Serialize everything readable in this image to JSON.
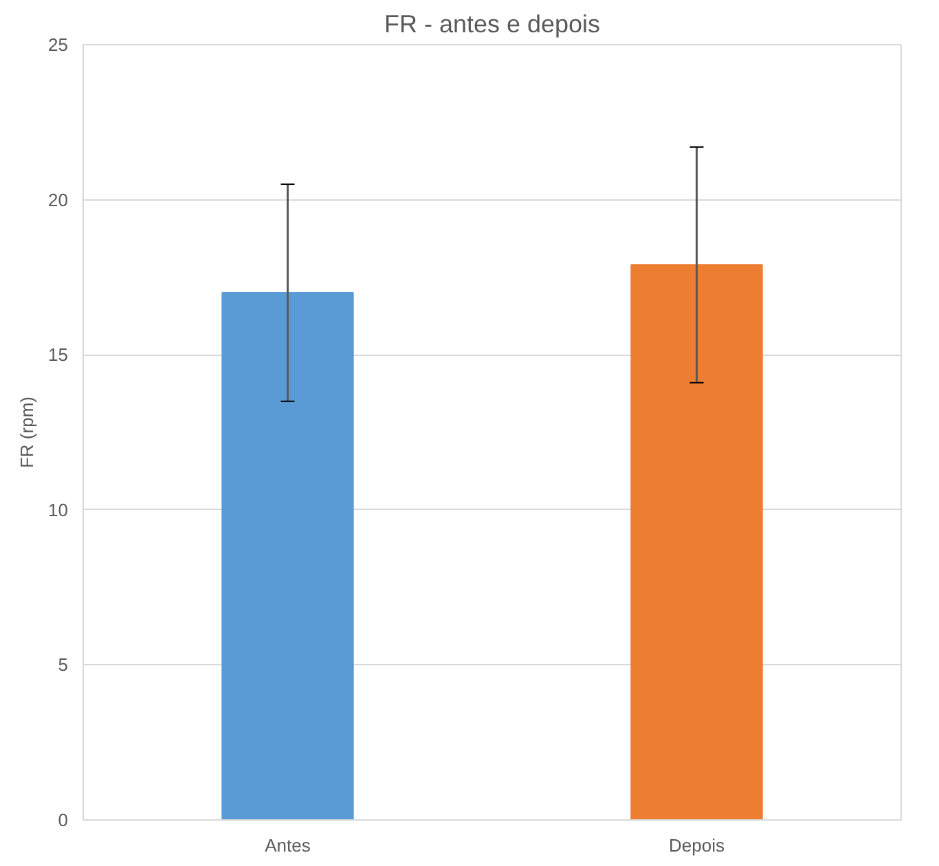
{
  "chart_data": {
    "type": "bar",
    "title": "FR - antes e depois",
    "ylabel": "FR (rpm)",
    "categories": [
      "Antes",
      "Depois"
    ],
    "values": [
      17.0,
      17.9
    ],
    "colors": [
      "#5b9bd5",
      "#ed7d31"
    ],
    "errors": [
      3.5,
      3.8
    ],
    "ylim": [
      0,
      25
    ],
    "yticks": [
      0,
      5,
      10,
      15,
      20,
      25
    ],
    "grid": "y"
  }
}
